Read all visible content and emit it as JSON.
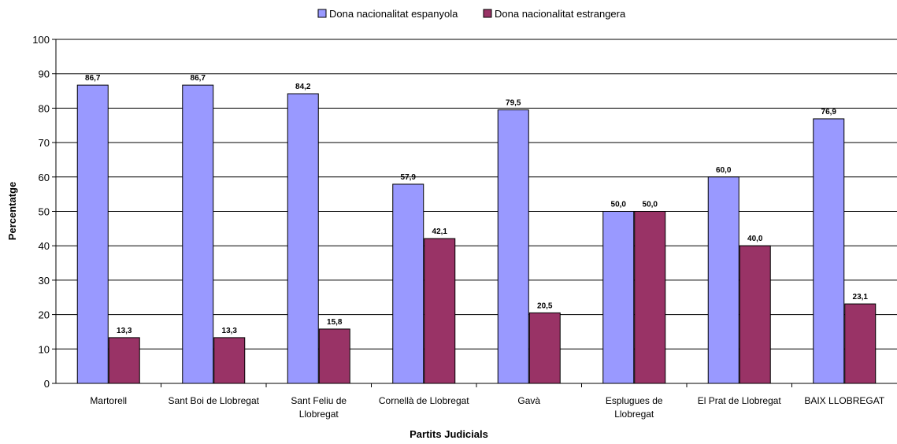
{
  "chart_data": {
    "type": "bar",
    "title": "",
    "xlabel": "Partits Judicials",
    "ylabel": "Percentatge",
    "ylim": [
      0,
      100
    ],
    "yticks": [
      0,
      10,
      20,
      30,
      40,
      50,
      60,
      70,
      80,
      90,
      100
    ],
    "grid": true,
    "legend_position": "top",
    "categories": [
      "Martorell",
      "Sant Boi de Llobregat",
      "Sant Feliu de Llobregat",
      "Cornellà de Llobregat",
      "Gavà",
      "Esplugues de Llobregat",
      "El Prat de Llobregat",
      "BAIX LLOBREGAT"
    ],
    "category_lines": [
      [
        "Martorell"
      ],
      [
        "Sant Boi de Llobregat"
      ],
      [
        "Sant Feliu de",
        "Llobregat"
      ],
      [
        "Cornellà de Llobregat"
      ],
      [
        "Gavà"
      ],
      [
        "Esplugues de",
        "Llobregat"
      ],
      [
        "El Prat de Llobregat"
      ],
      [
        "BAIX LLOBREGAT"
      ]
    ],
    "series": [
      {
        "name": "Dona nacionalitat espanyola",
        "color": "#9999ff",
        "values": [
          86.7,
          86.7,
          84.2,
          57.9,
          79.5,
          50.0,
          60.0,
          76.9
        ],
        "labels": [
          "86,7",
          "86,7",
          "84,2",
          "57,9",
          "79,5",
          "50,0",
          "60,0",
          "76,9"
        ]
      },
      {
        "name": "Dona nacionalitat estrangera",
        "color": "#993366",
        "values": [
          13.3,
          13.3,
          15.8,
          42.1,
          20.5,
          50.0,
          40.0,
          23.1
        ],
        "labels": [
          "13,3",
          "13,3",
          "15,8",
          "42,1",
          "20,5",
          "50,0",
          "40,0",
          "23,1"
        ]
      }
    ]
  }
}
